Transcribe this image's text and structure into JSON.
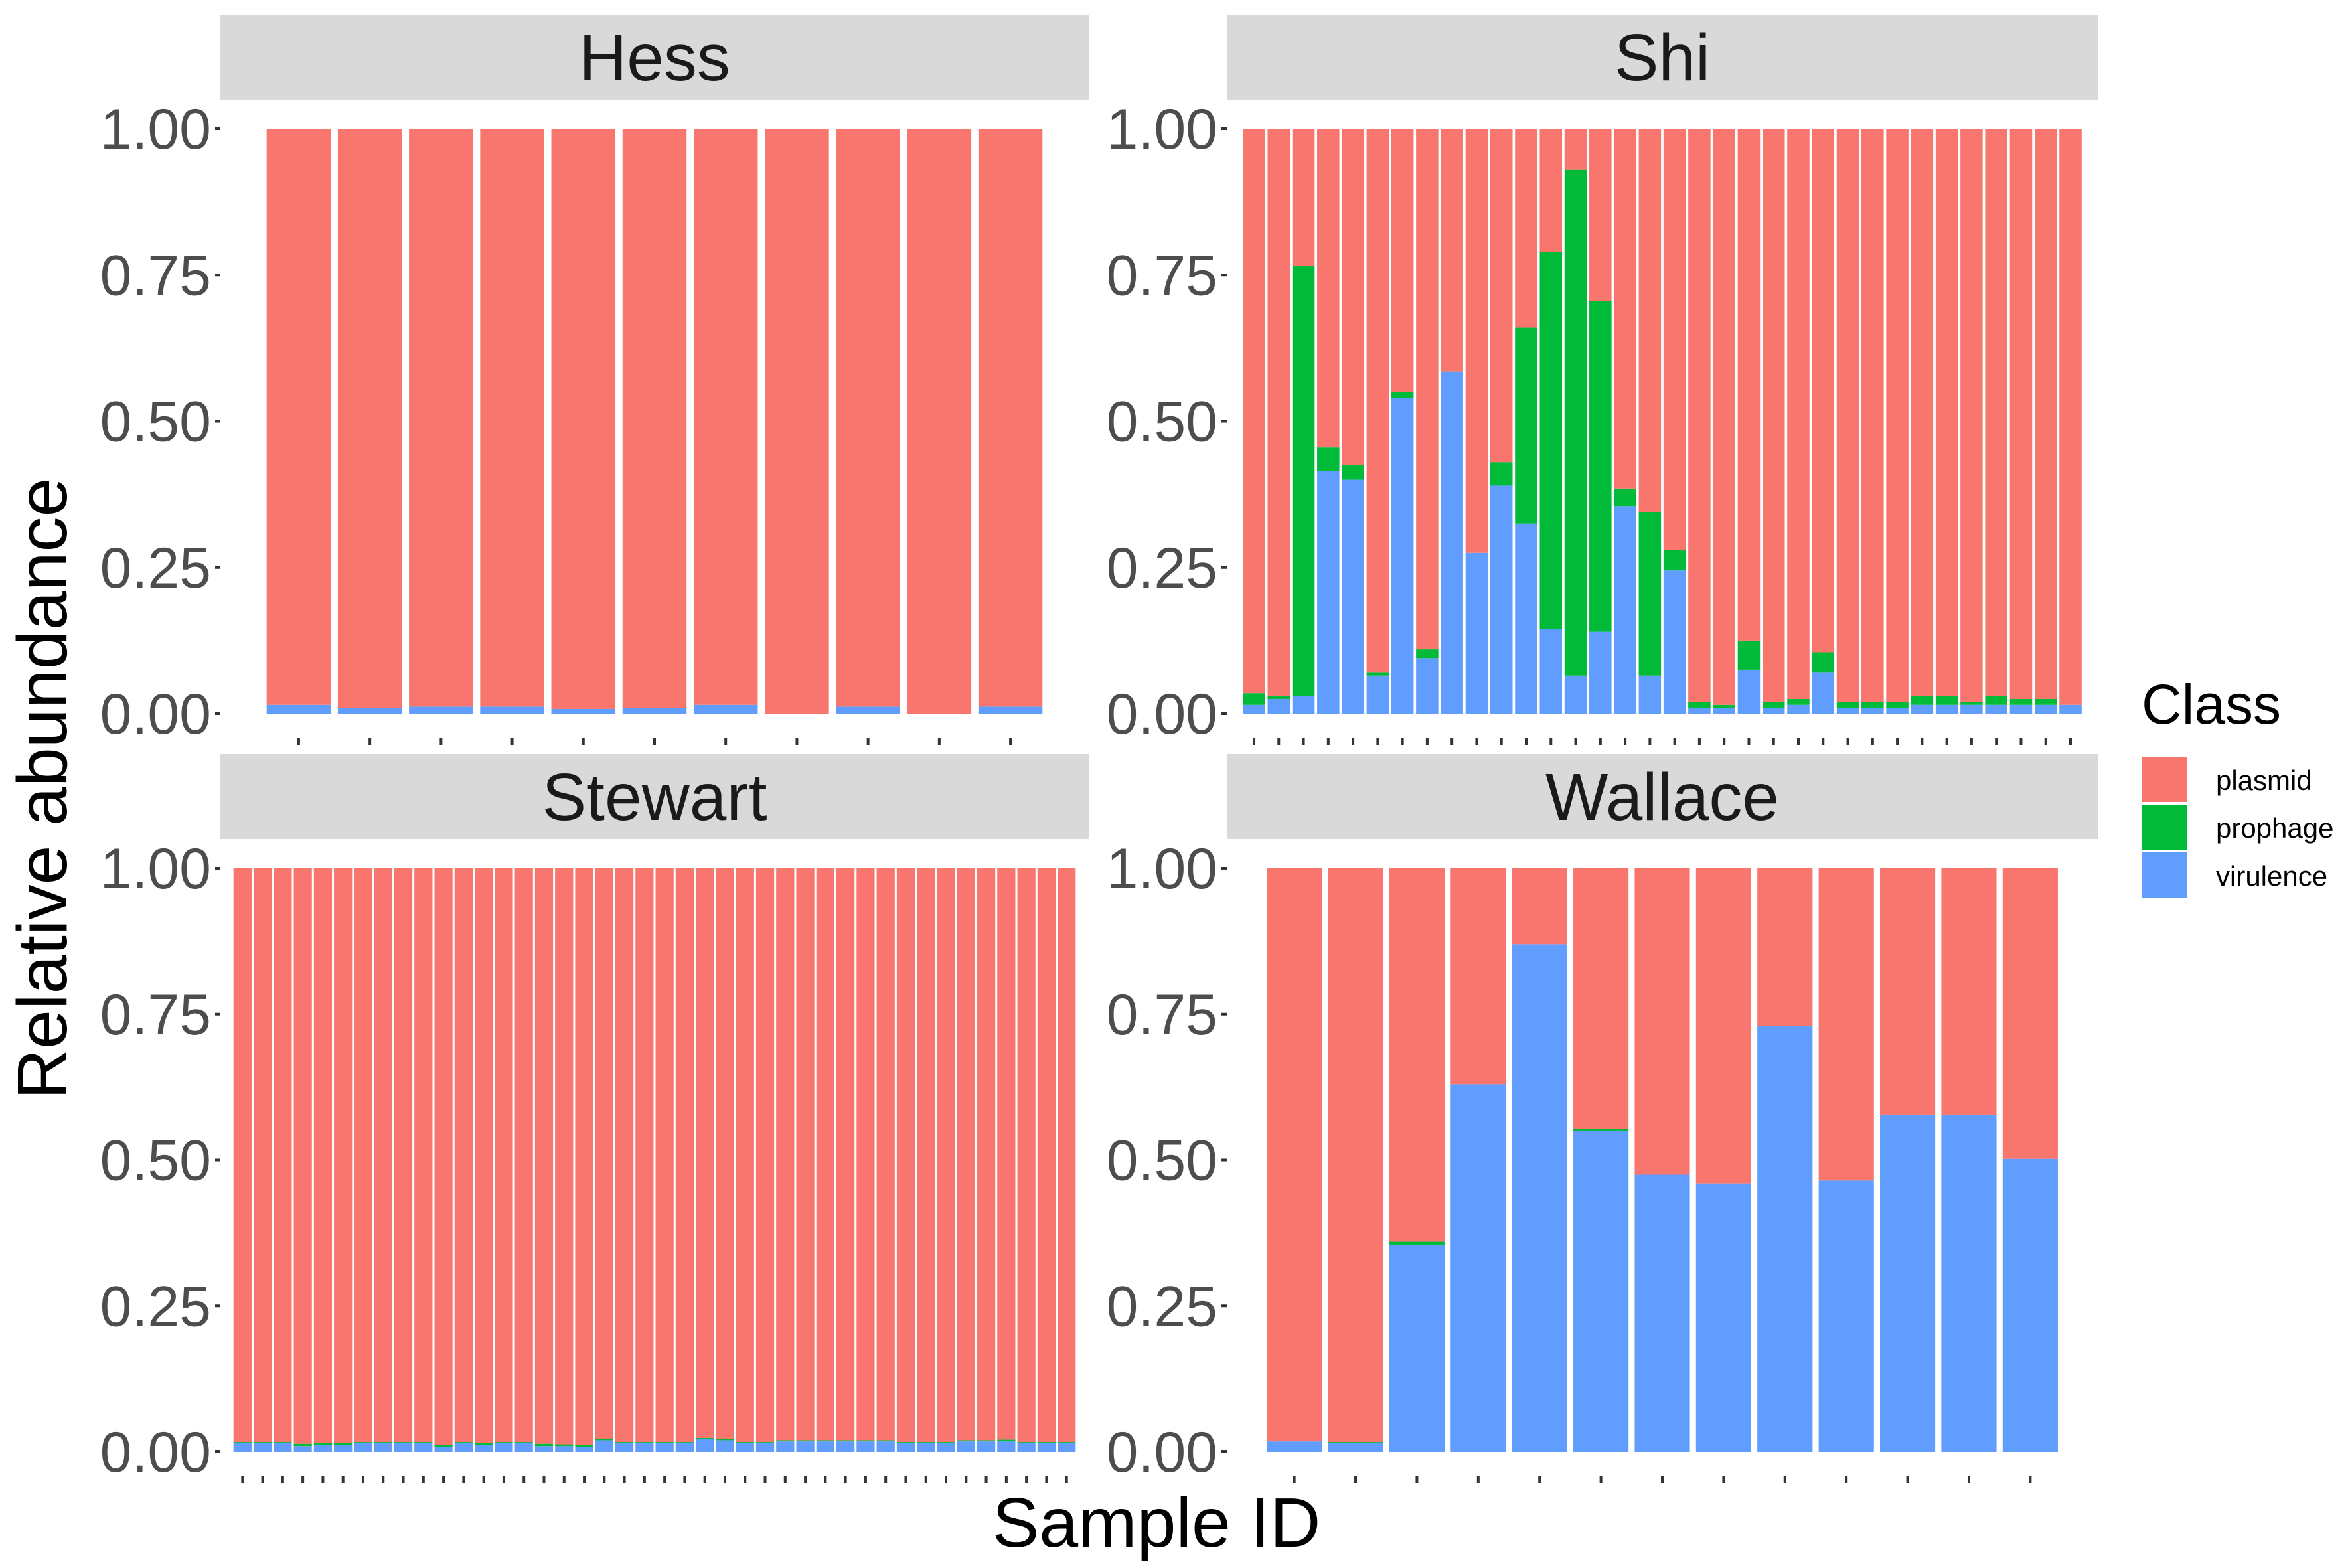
{
  "chart_data": {
    "type": "bar",
    "stacked": true,
    "xlabel": "Sample ID",
    "ylabel": "Relative abundance",
    "ylim": [
      0,
      1
    ],
    "yticks": [
      "0.00",
      "0.25",
      "0.50",
      "0.75",
      "1.00"
    ],
    "x_tick_labels_shown": false,
    "legend": {
      "title": "Class",
      "position": "right",
      "entries": [
        {
          "name": "plasmid",
          "color": "#F8766D"
        },
        {
          "name": "prophage",
          "color": "#00BA38"
        },
        {
          "name": "virulence",
          "color": "#619CFF"
        }
      ]
    },
    "panel_strip_color": "#D9D9D9",
    "panels": [
      {
        "title": "Hess",
        "series": [
          {
            "name": "virulence",
            "values": [
              0.015,
              0.01,
              0.012,
              0.012,
              0.008,
              0.01,
              0.015,
              0.0,
              0.012,
              0.0,
              0.012
            ]
          },
          {
            "name": "prophage",
            "values": [
              0.0,
              0.0,
              0.0,
              0.0,
              0.0,
              0.0,
              0.0,
              0.0,
              0.0,
              0.0,
              0.0
            ]
          },
          {
            "name": "plasmid",
            "values": [
              0.985,
              0.99,
              0.988,
              0.988,
              0.992,
              0.99,
              0.985,
              1.0,
              0.988,
              1.0,
              0.988
            ]
          }
        ]
      },
      {
        "title": "Shi",
        "series": [
          {
            "name": "virulence",
            "values": [
              0.015,
              0.025,
              0.03,
              0.415,
              0.4,
              0.065,
              0.54,
              0.095,
              0.585,
              0.275,
              0.39,
              0.325,
              0.145,
              0.065,
              0.14,
              0.355,
              0.065,
              0.245,
              0.01,
              0.01,
              0.075,
              0.01,
              0.015,
              0.07,
              0.01,
              0.01,
              0.01,
              0.015,
              0.015,
              0.015,
              0.015,
              0.015,
              0.015,
              0.015
            ]
          },
          {
            "name": "prophage",
            "values": [
              0.02,
              0.005,
              0.735,
              0.04,
              0.025,
              0.005,
              0.01,
              0.015,
              0.0,
              0.0,
              0.04,
              0.335,
              0.645,
              0.865,
              0.565,
              0.03,
              0.28,
              0.035,
              0.01,
              0.005,
              0.05,
              0.01,
              0.01,
              0.035,
              0.01,
              0.01,
              0.01,
              0.015,
              0.015,
              0.005,
              0.015,
              0.01,
              0.01,
              0.0
            ]
          },
          {
            "name": "plasmid",
            "values": [
              0.965,
              0.97,
              0.235,
              0.545,
              0.575,
              0.93,
              0.45,
              0.89,
              0.415,
              0.725,
              0.57,
              0.34,
              0.21,
              0.07,
              0.295,
              0.615,
              0.655,
              0.72,
              0.98,
              0.985,
              0.875,
              0.98,
              0.975,
              0.895,
              0.98,
              0.98,
              0.98,
              0.97,
              0.97,
              0.98,
              0.97,
              0.975,
              0.975,
              0.985
            ]
          }
        ]
      },
      {
        "title": "Stewart",
        "series": [
          {
            "name": "virulence",
            "values": [
              0.015,
              0.015,
              0.015,
              0.01,
              0.012,
              0.012,
              0.015,
              0.015,
              0.015,
              0.015,
              0.008,
              0.015,
              0.012,
              0.015,
              0.015,
              0.01,
              0.01,
              0.008,
              0.02,
              0.015,
              0.015,
              0.015,
              0.015,
              0.022,
              0.02,
              0.015,
              0.015,
              0.018,
              0.018,
              0.018,
              0.018,
              0.018,
              0.018,
              0.015,
              0.015,
              0.015,
              0.018,
              0.018,
              0.018,
              0.015,
              0.015,
              0.015
            ]
          },
          {
            "name": "prophage",
            "values": [
              0.002,
              0.002,
              0.002,
              0.004,
              0.003,
              0.003,
              0.002,
              0.002,
              0.002,
              0.002,
              0.004,
              0.002,
              0.003,
              0.002,
              0.002,
              0.004,
              0.003,
              0.004,
              0.002,
              0.002,
              0.002,
              0.002,
              0.002,
              0.002,
              0.002,
              0.002,
              0.002,
              0.002,
              0.002,
              0.002,
              0.002,
              0.002,
              0.002,
              0.002,
              0.002,
              0.002,
              0.002,
              0.002,
              0.003,
              0.002,
              0.002,
              0.002
            ]
          },
          {
            "name": "plasmid",
            "values": [
              0.983,
              0.983,
              0.983,
              0.986,
              0.985,
              0.985,
              0.983,
              0.983,
              0.983,
              0.983,
              0.988,
              0.983,
              0.985,
              0.983,
              0.983,
              0.986,
              0.987,
              0.988,
              0.978,
              0.983,
              0.983,
              0.983,
              0.983,
              0.976,
              0.978,
              0.983,
              0.983,
              0.98,
              0.98,
              0.98,
              0.98,
              0.98,
              0.98,
              0.983,
              0.983,
              0.983,
              0.98,
              0.98,
              0.979,
              0.983,
              0.983,
              0.983
            ]
          }
        ]
      },
      {
        "title": "Wallace",
        "series": [
          {
            "name": "virulence",
            "values": [
              0.018,
              0.015,
              0.355,
              0.63,
              0.87,
              0.55,
              0.475,
              0.46,
              0.73,
              0.465,
              0.578,
              0.578,
              0.502
            ]
          },
          {
            "name": "prophage",
            "values": [
              0.0,
              0.002,
              0.005,
              0.0,
              0.0,
              0.003,
              0.0,
              0.0,
              0.0,
              0.0,
              0.0,
              0.0,
              0.0
            ]
          },
          {
            "name": "plasmid",
            "values": [
              0.982,
              0.983,
              0.64,
              0.37,
              0.13,
              0.447,
              0.525,
              0.54,
              0.27,
              0.535,
              0.422,
              0.422,
              0.498
            ]
          }
        ]
      }
    ]
  }
}
